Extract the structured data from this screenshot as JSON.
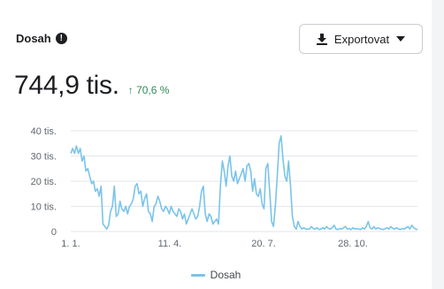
{
  "card": {
    "title": "Dosah",
    "info_icon": "info-circle-icon",
    "export_label": "Exportovat",
    "download_icon": "download-icon",
    "dropdown_icon": "caret-down-icon",
    "metric_value": "744,9 tis.",
    "metric_change": "↑ 70,6 %",
    "change_color": "#2e8a57"
  },
  "chart_data": {
    "type": "line",
    "xlabel": "",
    "ylabel": "",
    "x_ticks": [
      "1. 1.",
      "11. 4.",
      "20. 7.",
      "28. 10."
    ],
    "y_ticks": [
      "40 tis.",
      "30 tis.",
      "20 tis.",
      "10 tis.",
      "0"
    ],
    "ylim": [
      0,
      40000
    ],
    "grid": true,
    "legend_position": "bottom-center",
    "series": [
      {
        "name": "Dosah",
        "color": "#7ac4ea",
        "values": [
          31000,
          33000,
          31000,
          34000,
          31000,
          33000,
          28000,
          30000,
          24000,
          25000,
          22000,
          19000,
          20000,
          16000,
          17000,
          14000,
          18000,
          3000,
          2000,
          1000,
          2500,
          8000,
          10000,
          18000,
          6000,
          7000,
          12000,
          9000,
          8000,
          10000,
          7000,
          10000,
          11000,
          13000,
          18000,
          19000,
          15000,
          16000,
          10000,
          13000,
          15000,
          8000,
          7000,
          4000,
          10000,
          11000,
          14000,
          12000,
          9000,
          8000,
          10000,
          9000,
          7000,
          10000,
          8000,
          7000,
          6000,
          9000,
          8000,
          5000,
          7000,
          3000,
          5000,
          7000,
          9000,
          7000,
          5000,
          6000,
          10000,
          16000,
          18000,
          7000,
          4000,
          7000,
          6000,
          3000,
          4000,
          5000,
          3000,
          18000,
          28000,
          24000,
          18000,
          26000,
          30000,
          22000,
          20000,
          24000,
          19000,
          21000,
          23000,
          25000,
          20000,
          26000,
          27000,
          24000,
          16000,
          21000,
          15000,
          14000,
          17000,
          11000,
          9000,
          25000,
          27000,
          16000,
          4000,
          2000,
          10000,
          22000,
          35000,
          38000,
          29000,
          22000,
          20000,
          28000,
          18000,
          6000,
          2000,
          1000,
          4000,
          2000,
          1000,
          1500,
          1000,
          1000,
          1000,
          2000,
          1200,
          1000,
          1500,
          800,
          1000,
          1500,
          1000,
          2000,
          1200,
          1000,
          1500,
          2500,
          1000,
          800,
          1200,
          1000,
          1500,
          2000,
          1000,
          1200,
          800,
          1500,
          1000,
          1200,
          1000,
          800,
          1500,
          1000,
          2000,
          4000,
          1500,
          1000,
          2000,
          1000,
          1500,
          1200,
          1000,
          800,
          1200,
          1500,
          1000,
          2000,
          1200,
          1000,
          1500,
          1000,
          800,
          1200,
          1000,
          1500,
          2000,
          1000,
          2500,
          1500,
          1000,
          800
        ]
      }
    ]
  }
}
